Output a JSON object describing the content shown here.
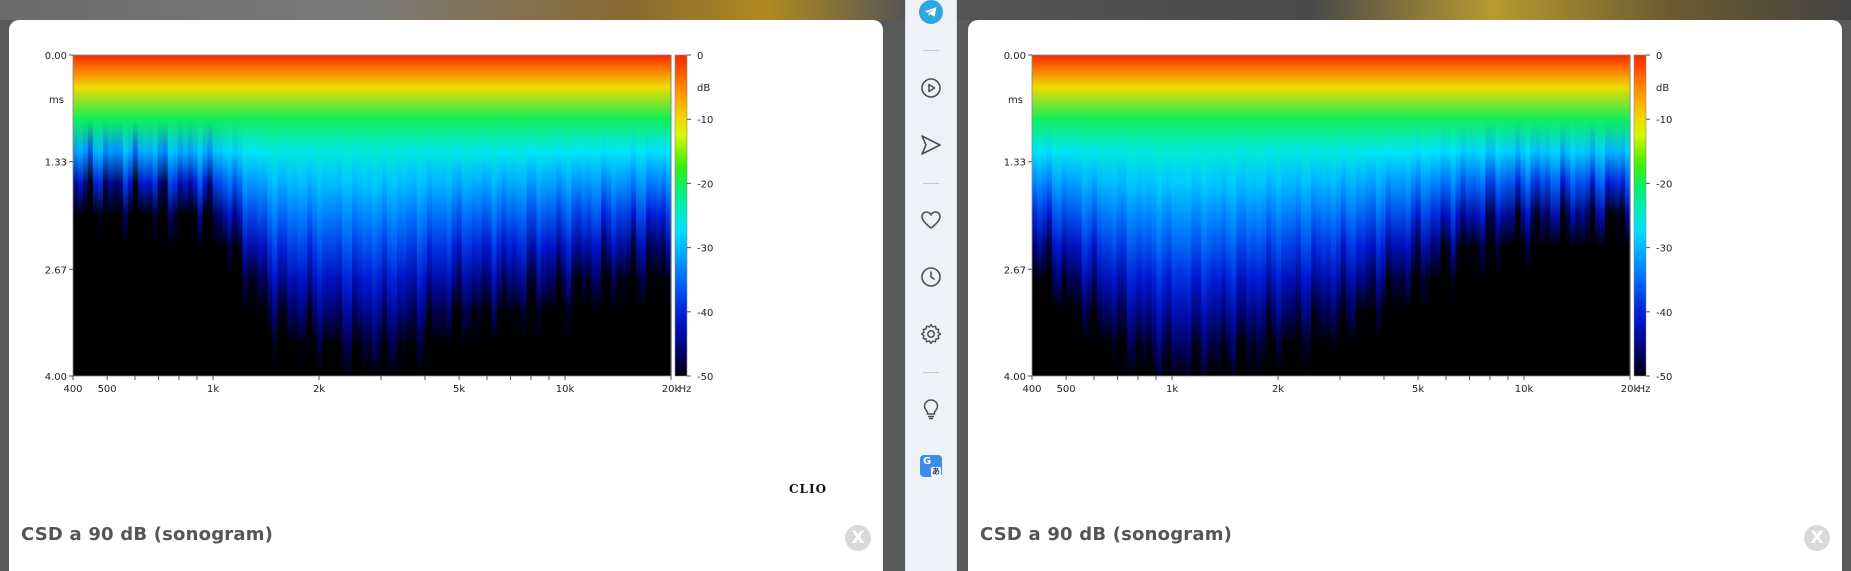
{
  "panels": [
    {
      "id": "left",
      "caption": "CSD a 90 dB (sonogram)",
      "watermark": "CLIO",
      "close_label": "X"
    },
    {
      "id": "right",
      "caption": "CSD a 90 dB (sonogram)",
      "watermark": "",
      "close_label": "X"
    }
  ],
  "chart_data": [
    {
      "type": "heatmap",
      "title": "",
      "xlabel": "Hz",
      "ylabel": "ms",
      "x_scale": "log",
      "xlim": [
        400,
        20000
      ],
      "ylim": [
        4.0,
        0.0
      ],
      "x_ticks": [
        "400",
        "500",
        "1k",
        "2k",
        "5k",
        "10k",
        "20k"
      ],
      "y_ticks": [
        "0.00",
        "1.33",
        "2.67",
        "4.00"
      ],
      "colorbar": {
        "label": "dB",
        "range": [
          -50,
          0
        ],
        "ticks": [
          "0",
          "-10",
          "-20",
          "-30",
          "-40",
          "-50"
        ]
      },
      "decay_profile": {
        "x_hz": [
          400,
          500,
          700,
          1000,
          1500,
          2000,
          3000,
          5000,
          7000,
          10000,
          15000,
          20000
        ],
        "time_to_minus50db_ms": [
          1.8,
          1.8,
          1.9,
          2.0,
          3.4,
          3.6,
          3.8,
          3.3,
          3.2,
          3.0,
          2.8,
          2.6
        ]
      }
    },
    {
      "type": "heatmap",
      "title": "",
      "xlabel": "Hz",
      "ylabel": "ms",
      "x_scale": "log",
      "xlim": [
        400,
        20000
      ],
      "ylim": [
        4.0,
        0.0
      ],
      "x_ticks": [
        "400",
        "500",
        "1k",
        "2k",
        "5k",
        "10k",
        "20k"
      ],
      "y_ticks": [
        "0.00",
        "1.33",
        "2.67",
        "4.00"
      ],
      "colorbar": {
        "label": "dB",
        "range": [
          -50,
          0
        ],
        "ticks": [
          "0",
          "-10",
          "-20",
          "-30",
          "-40",
          "-50"
        ]
      },
      "decay_profile": {
        "x_hz": [
          400,
          500,
          700,
          1000,
          1500,
          2000,
          3000,
          5000,
          7000,
          10000,
          15000,
          20000
        ],
        "time_to_minus50db_ms": [
          2.6,
          3.0,
          3.6,
          4.0,
          3.8,
          3.6,
          3.4,
          2.8,
          2.4,
          2.2,
          2.2,
          2.0
        ]
      }
    }
  ],
  "sidebar": {
    "items": [
      {
        "icon": "telegram-icon"
      },
      {
        "icon": "play-icon"
      },
      {
        "icon": "send-icon"
      },
      {
        "icon": "heart-icon"
      },
      {
        "icon": "clock-icon"
      },
      {
        "icon": "gear-icon"
      },
      {
        "icon": "lightbulb-icon"
      },
      {
        "icon": "translate-icon",
        "label": "G",
        "sub": "あ"
      }
    ]
  }
}
